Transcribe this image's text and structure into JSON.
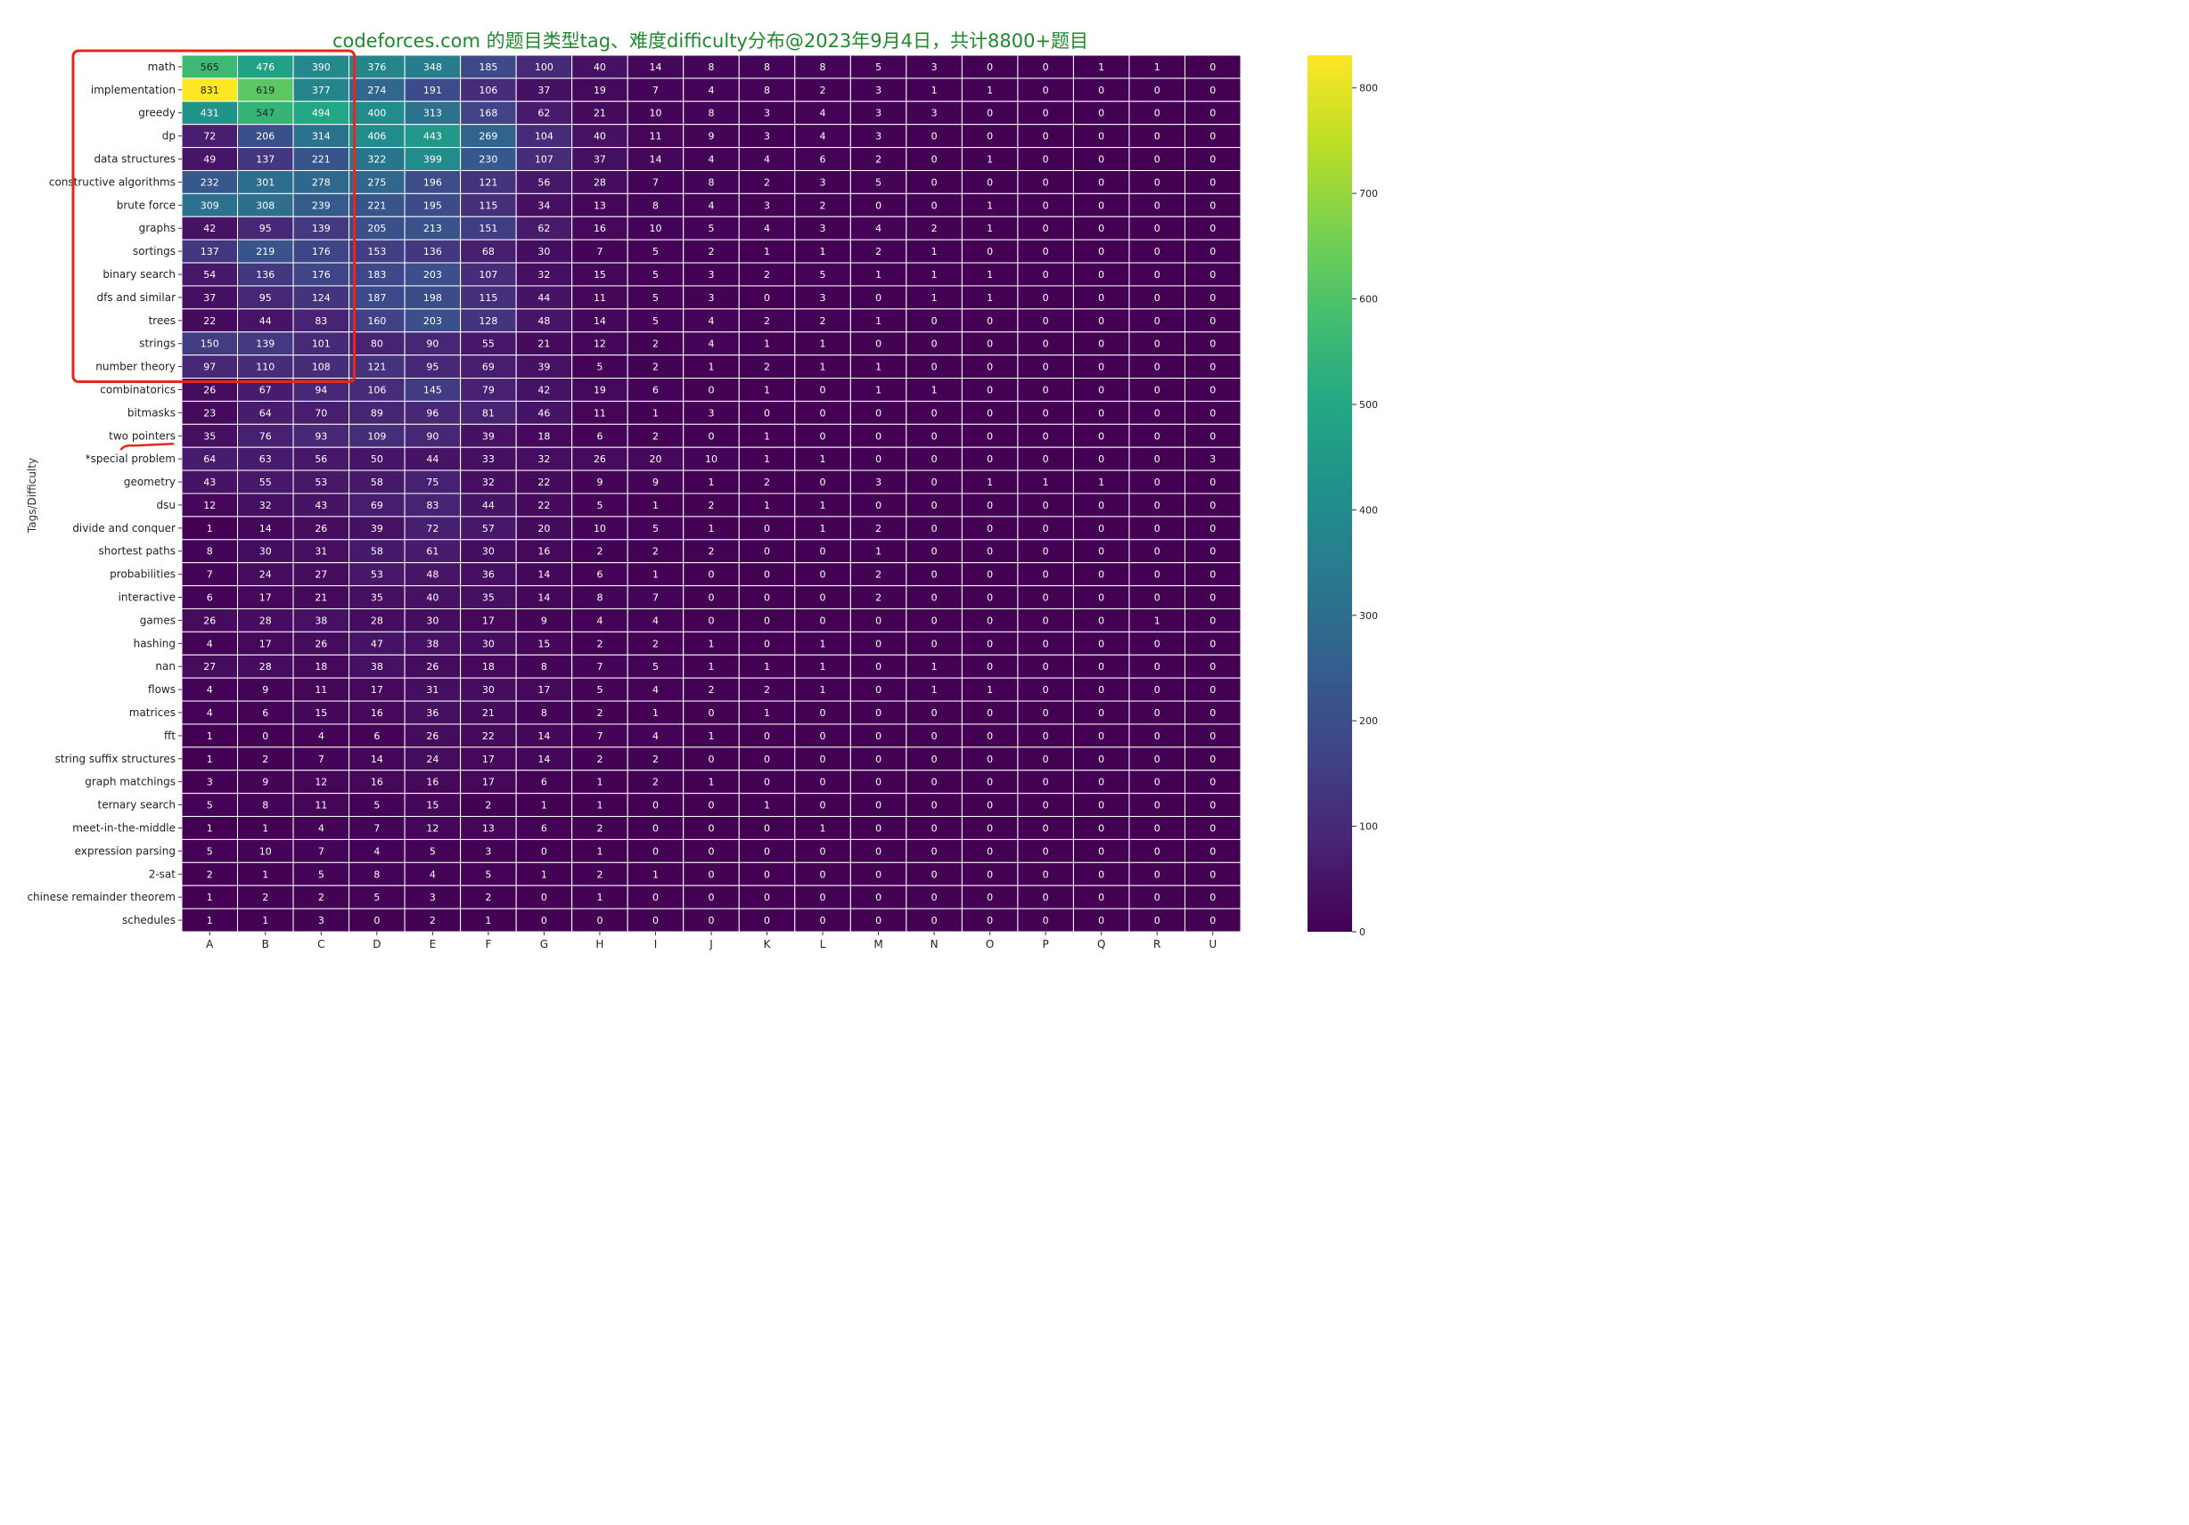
{
  "chart_data": {
    "type": "heatmap",
    "title": "codeforces.com 的题目类型tag、难度difficulty分布@2023年9月4日，共计8800+题目",
    "ylabel": "Tags/Difficulty",
    "xlabel": "",
    "columns": [
      "A",
      "B",
      "C",
      "D",
      "E",
      "F",
      "G",
      "H",
      "I",
      "J",
      "K",
      "L",
      "M",
      "N",
      "O",
      "P",
      "Q",
      "R",
      "U"
    ],
    "rows": [
      "math",
      "implementation",
      "greedy",
      "dp",
      "data structures",
      "constructive algorithms",
      "brute force",
      "graphs",
      "sortings",
      "binary search",
      "dfs and similar",
      "trees",
      "strings",
      "number theory",
      "combinatorics",
      "bitmasks",
      "two pointers",
      "*special problem",
      "geometry",
      "dsu",
      "divide and conquer",
      "shortest paths",
      "probabilities",
      "interactive",
      "games",
      "hashing",
      "nan",
      "flows",
      "matrices",
      "fft",
      "string suffix structures",
      "graph matchings",
      "ternary search",
      "meet-in-the-middle",
      "expression parsing",
      "2-sat",
      "chinese remainder theorem",
      "schedules"
    ],
    "values": [
      [
        565,
        476,
        390,
        376,
        348,
        185,
        100,
        40,
        14,
        8,
        8,
        8,
        5,
        3,
        0,
        0,
        1,
        1,
        0
      ],
      [
        831,
        619,
        377,
        274,
        191,
        106,
        37,
        19,
        7,
        4,
        8,
        2,
        3,
        1,
        1,
        0,
        0,
        0,
        0
      ],
      [
        431,
        547,
        494,
        400,
        313,
        168,
        62,
        21,
        10,
        8,
        3,
        4,
        3,
        3,
        0,
        0,
        0,
        0,
        0
      ],
      [
        72,
        206,
        314,
        406,
        443,
        269,
        104,
        40,
        11,
        9,
        3,
        4,
        3,
        0,
        0,
        0,
        0,
        0,
        0
      ],
      [
        49,
        137,
        221,
        322,
        399,
        230,
        107,
        37,
        14,
        4,
        4,
        6,
        2,
        0,
        1,
        0,
        0,
        0,
        0
      ],
      [
        232,
        301,
        278,
        275,
        196,
        121,
        56,
        28,
        7,
        8,
        2,
        3,
        5,
        0,
        0,
        0,
        0,
        0,
        0
      ],
      [
        309,
        308,
        239,
        221,
        195,
        115,
        34,
        13,
        8,
        4,
        3,
        2,
        0,
        0,
        1,
        0,
        0,
        0,
        0
      ],
      [
        42,
        95,
        139,
        205,
        213,
        151,
        62,
        16,
        10,
        5,
        4,
        3,
        4,
        2,
        1,
        0,
        0,
        0,
        0
      ],
      [
        137,
        219,
        176,
        153,
        136,
        68,
        30,
        7,
        5,
        2,
        1,
        1,
        2,
        1,
        0,
        0,
        0,
        0,
        0
      ],
      [
        54,
        136,
        176,
        183,
        203,
        107,
        32,
        15,
        5,
        3,
        2,
        5,
        1,
        1,
        1,
        0,
        0,
        0,
        0
      ],
      [
        37,
        95,
        124,
        187,
        198,
        115,
        44,
        11,
        5,
        3,
        0,
        3,
        0,
        1,
        1,
        0,
        0,
        0,
        0
      ],
      [
        22,
        44,
        83,
        160,
        203,
        128,
        48,
        14,
        5,
        4,
        2,
        2,
        1,
        0,
        0,
        0,
        0,
        0,
        0
      ],
      [
        150,
        139,
        101,
        80,
        90,
        55,
        21,
        12,
        2,
        4,
        1,
        1,
        0,
        0,
        0,
        0,
        0,
        0,
        0
      ],
      [
        97,
        110,
        108,
        121,
        95,
        69,
        39,
        5,
        2,
        1,
        2,
        1,
        1,
        0,
        0,
        0,
        0,
        0,
        0
      ],
      [
        26,
        67,
        94,
        106,
        145,
        79,
        42,
        19,
        6,
        0,
        1,
        0,
        1,
        1,
        0,
        0,
        0,
        0,
        0
      ],
      [
        23,
        64,
        70,
        89,
        96,
        81,
        46,
        11,
        1,
        3,
        0,
        0,
        0,
        0,
        0,
        0,
        0,
        0,
        0
      ],
      [
        35,
        76,
        93,
        109,
        90,
        39,
        18,
        6,
        2,
        0,
        1,
        0,
        0,
        0,
        0,
        0,
        0,
        0,
        0
      ],
      [
        64,
        63,
        56,
        50,
        44,
        33,
        32,
        26,
        20,
        10,
        1,
        1,
        0,
        0,
        0,
        0,
        0,
        0,
        3
      ],
      [
        43,
        55,
        53,
        58,
        75,
        32,
        22,
        9,
        9,
        1,
        2,
        0,
        3,
        0,
        1,
        1,
        1,
        0,
        0
      ],
      [
        12,
        32,
        43,
        69,
        83,
        44,
        22,
        5,
        1,
        2,
        1,
        1,
        0,
        0,
        0,
        0,
        0,
        0,
        0
      ],
      [
        1,
        14,
        26,
        39,
        72,
        57,
        20,
        10,
        5,
        1,
        0,
        1,
        2,
        0,
        0,
        0,
        0,
        0,
        0
      ],
      [
        8,
        30,
        31,
        58,
        61,
        30,
        16,
        2,
        2,
        2,
        0,
        0,
        1,
        0,
        0,
        0,
        0,
        0,
        0
      ],
      [
        7,
        24,
        27,
        53,
        48,
        36,
        14,
        6,
        1,
        0,
        0,
        0,
        2,
        0,
        0,
        0,
        0,
        0,
        0
      ],
      [
        6,
        17,
        21,
        35,
        40,
        35,
        14,
        8,
        7,
        0,
        0,
        0,
        2,
        0,
        0,
        0,
        0,
        0,
        0
      ],
      [
        26,
        28,
        38,
        28,
        30,
        17,
        9,
        4,
        4,
        0,
        0,
        0,
        0,
        0,
        0,
        0,
        0,
        1,
        0
      ],
      [
        4,
        17,
        26,
        47,
        38,
        30,
        15,
        2,
        2,
        1,
        0,
        1,
        0,
        0,
        0,
        0,
        0,
        0,
        0
      ],
      [
        27,
        28,
        18,
        38,
        26,
        18,
        8,
        7,
        5,
        1,
        1,
        1,
        0,
        1,
        0,
        0,
        0,
        0,
        0
      ],
      [
        4,
        9,
        11,
        17,
        31,
        30,
        17,
        5,
        4,
        2,
        2,
        1,
        0,
        1,
        1,
        0,
        0,
        0,
        0
      ],
      [
        4,
        6,
        15,
        16,
        36,
        21,
        8,
        2,
        1,
        0,
        1,
        0,
        0,
        0,
        0,
        0,
        0,
        0,
        0
      ],
      [
        1,
        0,
        4,
        6,
        26,
        22,
        14,
        7,
        4,
        1,
        0,
        0,
        0,
        0,
        0,
        0,
        0,
        0,
        0
      ],
      [
        1,
        2,
        7,
        14,
        24,
        17,
        14,
        2,
        2,
        0,
        0,
        0,
        0,
        0,
        0,
        0,
        0,
        0,
        0
      ],
      [
        3,
        9,
        12,
        16,
        16,
        17,
        6,
        1,
        2,
        1,
        0,
        0,
        0,
        0,
        0,
        0,
        0,
        0,
        0
      ],
      [
        5,
        8,
        11,
        5,
        15,
        2,
        1,
        1,
        0,
        0,
        1,
        0,
        0,
        0,
        0,
        0,
        0,
        0,
        0
      ],
      [
        1,
        1,
        4,
        7,
        12,
        13,
        6,
        2,
        0,
        0,
        0,
        1,
        0,
        0,
        0,
        0,
        0,
        0,
        0
      ],
      [
        5,
        10,
        7,
        4,
        5,
        3,
        0,
        1,
        0,
        0,
        0,
        0,
        0,
        0,
        0,
        0,
        0,
        0,
        0
      ],
      [
        2,
        1,
        5,
        8,
        4,
        5,
        1,
        2,
        1,
        0,
        0,
        0,
        0,
        0,
        0,
        0,
        0,
        0,
        0
      ],
      [
        1,
        2,
        2,
        5,
        3,
        2,
        0,
        1,
        0,
        0,
        0,
        0,
        0,
        0,
        0,
        0,
        0,
        0,
        0
      ],
      [
        1,
        1,
        3,
        0,
        2,
        1,
        0,
        0,
        0,
        0,
        0,
        0,
        0,
        0,
        0,
        0,
        0,
        0,
        0
      ]
    ],
    "colorbar": {
      "colormap": "viridis",
      "range": [
        0,
        831
      ],
      "ticks": [
        0,
        100,
        200,
        300,
        400,
        500,
        600,
        700,
        800
      ]
    },
    "annotations": [
      {
        "type": "highlight-box",
        "color": "#e8261c",
        "rows": [
          "math",
          "number theory"
        ],
        "columns": [
          "A",
          "C"
        ]
      },
      {
        "type": "underline",
        "color": "#e8261c",
        "row": "two pointers"
      }
    ],
    "title_color": "#1e8a2e",
    "grid": true
  }
}
